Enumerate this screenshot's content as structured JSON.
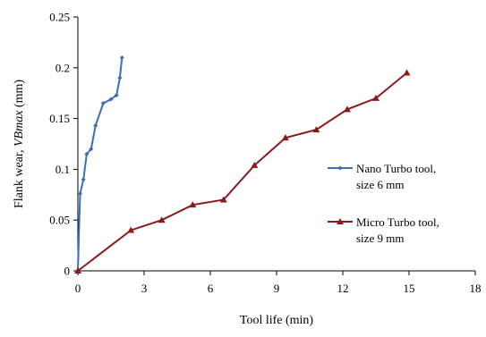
{
  "chart_data": {
    "type": "line",
    "title": "",
    "xlabel": "Tool life (min)",
    "ylabel_prefix": "Flank wear, ",
    "ylabel_symbol": "VBmax",
    "ylabel_suffix": " (mm)",
    "xlim": [
      0,
      18
    ],
    "ylim": [
      0,
      0.25
    ],
    "x_ticks": [
      "0",
      "3",
      "6",
      "9",
      "12",
      "15",
      "18"
    ],
    "y_ticks": [
      "0",
      "0.05",
      "0.1",
      "0.15",
      "0.2",
      "0.25"
    ],
    "grid": false,
    "legend_position": "right",
    "series": [
      {
        "name": "Nano Turbo tool, size 6 mm",
        "legend_line1": "Nano Turbo tool,",
        "legend_line2": "size 6 mm",
        "color": "#3a6fb0",
        "marker": "diamond",
        "x": [
          0,
          0.1,
          0.25,
          0.4,
          0.6,
          0.8,
          1.15,
          1.5,
          1.75,
          1.9,
          2.0
        ],
        "y": [
          0,
          0.076,
          0.09,
          0.115,
          0.12,
          0.143,
          0.165,
          0.169,
          0.173,
          0.19,
          0.21
        ]
      },
      {
        "name": "Micro Turbo tool, size 9 mm",
        "legend_line1": "Micro Turbo tool,",
        "legend_line2": "size 9 mm",
        "color": "#8b1a1a",
        "marker": "triangle",
        "x": [
          0,
          2.4,
          3.8,
          5.2,
          6.6,
          8.0,
          9.4,
          10.8,
          12.2,
          13.5,
          14.9
        ],
        "y": [
          0,
          0.04,
          0.05,
          0.065,
          0.07,
          0.104,
          0.131,
          0.139,
          0.159,
          0.17,
          0.195
        ]
      }
    ]
  }
}
